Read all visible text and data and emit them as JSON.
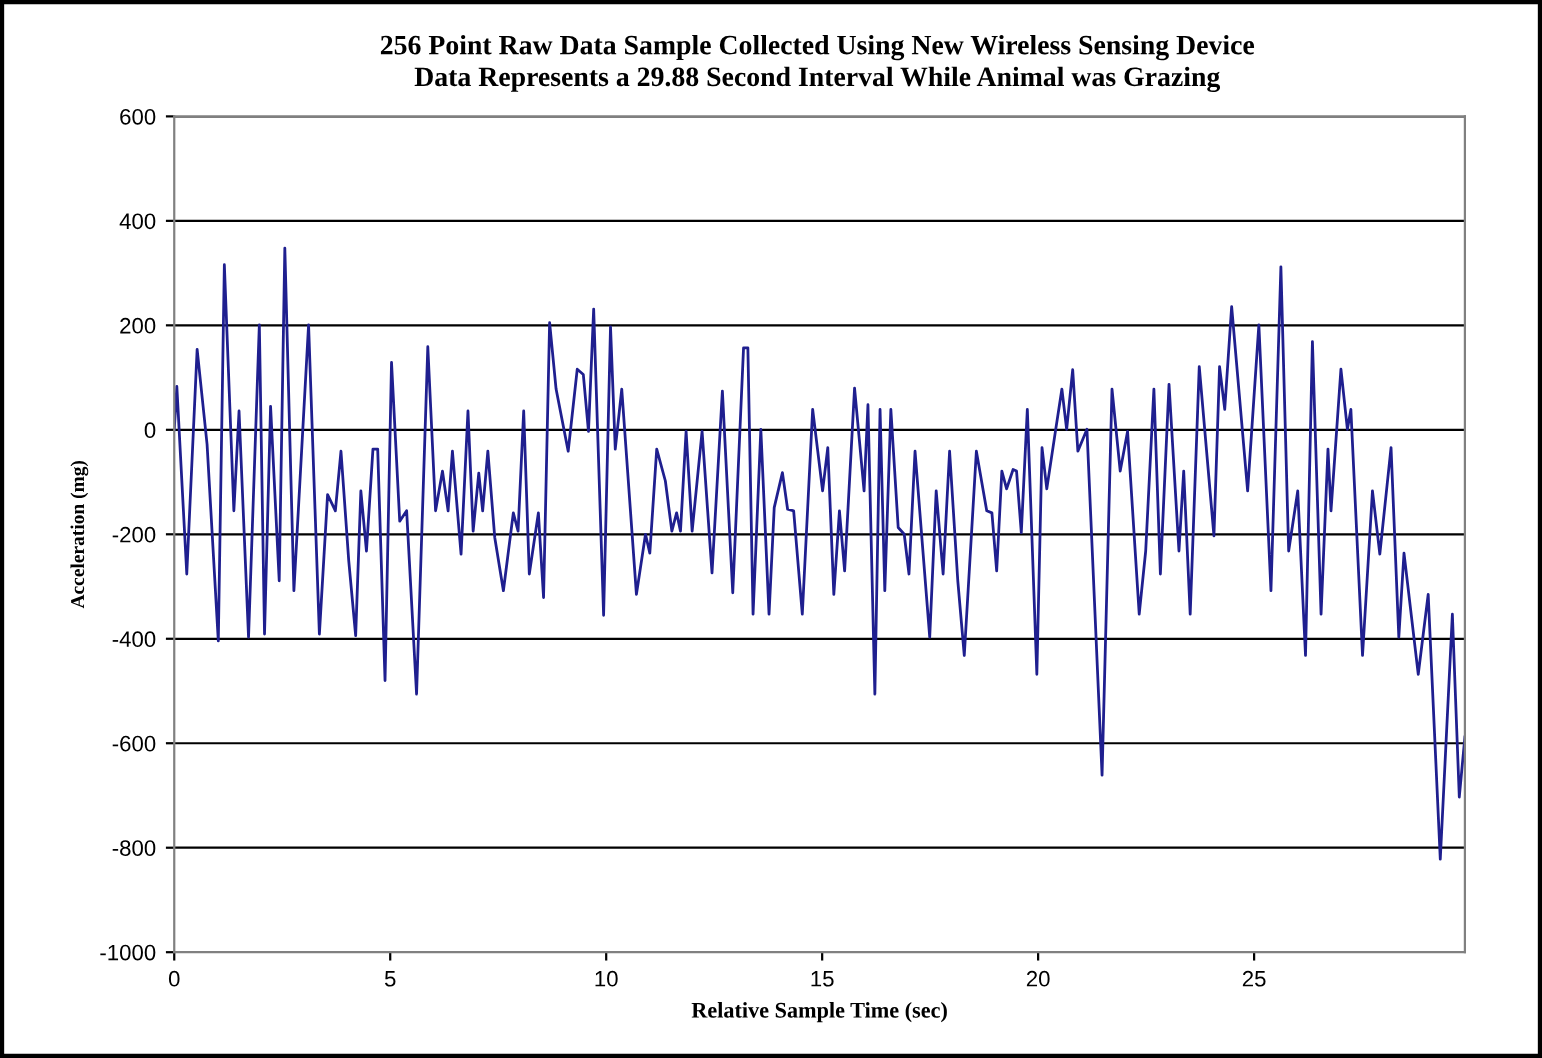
{
  "chart_data": {
    "type": "line",
    "title": "256 Point Raw Data Sample Collected Using New Wireless Sensing Device",
    "subtitle": "Data Represents a 29.88 Second Interval While Animal was Grazing",
    "xlabel": "Relative Sample Time (sec)",
    "ylabel": "Acceleration (mg)",
    "x": [
      0,
      0.06,
      0.29,
      0.53,
      0.76,
      1.02,
      1.16,
      1.38,
      1.5,
      1.72,
      1.97,
      2.09,
      2.23,
      2.43,
      2.56,
      2.77,
      3.11,
      3.36,
      3.55,
      3.73,
      3.86,
      4.04,
      4.2,
      4.32,
      4.45,
      4.6,
      4.71,
      4.88,
      5.03,
      5.22,
      5.38,
      5.61,
      5.87,
      6.05,
      6.21,
      6.34,
      6.44,
      6.64,
      6.8,
      6.92,
      7.05,
      7.14,
      7.26,
      7.42,
      7.62,
      7.85,
      7.96,
      8.09,
      8.22,
      8.43,
      8.55,
      8.69,
      8.84,
      9.12,
      9.33,
      9.47,
      9.59,
      9.71,
      9.94,
      10.1,
      10.21,
      10.36,
      10.7,
      10.91,
      11.01,
      11.17,
      11.37,
      11.52,
      11.63,
      11.72,
      11.85,
      11.99,
      12.22,
      12.45,
      12.69,
      12.93,
      13.18,
      13.28,
      13.4,
      13.58,
      13.77,
      13.89,
      14.08,
      14.2,
      14.34,
      14.54,
      14.78,
      15.01,
      15.13,
      15.27,
      15.4,
      15.52,
      15.75,
      15.97,
      16.06,
      16.22,
      16.34,
      16.45,
      16.59,
      16.76,
      16.9,
      17.01,
      17.15,
      17.49,
      17.64,
      17.8,
      17.95,
      18.14,
      18.29,
      18.57,
      18.81,
      18.93,
      19.04,
      19.16,
      19.27,
      19.42,
      19.5,
      19.61,
      19.75,
      19.97,
      20.09,
      20.2,
      20.4,
      20.55,
      20.66,
      20.8,
      20.92,
      21.13,
      21.48,
      21.71,
      21.9,
      22.07,
      22.34,
      22.49,
      22.68,
      22.83,
      23.03,
      23.26,
      23.37,
      23.52,
      23.73,
      24.07,
      24.2,
      24.32,
      24.48,
      24.85,
      25.11,
      25.39,
      25.62,
      25.8,
      26.01,
      26.19,
      26.35,
      26.55,
      26.71,
      26.78,
      27.01,
      27.16,
      27.24,
      27.51,
      27.74,
      27.91,
      28.17,
      28.35,
      28.47,
      28.8,
      29.03,
      29.31,
      29.59,
      29.75,
      29.88
    ],
    "series": [
      {
        "color": "#1f1f8f",
        "values": [
          0,
          83,
          -276,
          154,
          -28,
          -404,
          316,
          -155,
          36,
          -397,
          201,
          -391,
          45,
          -289,
          348,
          -308,
          201,
          -391,
          -124,
          -155,
          -41,
          -251,
          -394,
          -117,
          -232,
          -37,
          -37,
          -480,
          129,
          -175,
          -155,
          -506,
          159,
          -155,
          -79,
          -155,
          -41,
          -238,
          36,
          -194,
          -83,
          -155,
          -41,
          -206,
          -308,
          -159,
          -194,
          36,
          -276,
          -159,
          -321,
          205,
          78,
          -41,
          116,
          106,
          -3,
          231,
          -355,
          197,
          -37,
          78,
          -315,
          -200,
          -236,
          -37,
          -98,
          -194,
          -159,
          -194,
          -3,
          -194,
          -3,
          -274,
          74,
          -312,
          157,
          157,
          -353,
          1,
          -353,
          -149,
          -82,
          -152,
          -155,
          -353,
          39,
          -117,
          -34,
          -315,
          -155,
          -270,
          80,
          -117,
          48,
          -506,
          39,
          -308,
          39,
          -187,
          -200,
          -276,
          -41,
          -397,
          -117,
          -276,
          -41,
          -289,
          -432,
          -41,
          -155,
          -159,
          -270,
          -79,
          -113,
          -76,
          -79,
          -197,
          39,
          -468,
          -34,
          -113,
          -3,
          78,
          1,
          115,
          -41,
          1,
          -661,
          78,
          -79,
          -3,
          -353,
          -232,
          78,
          -276,
          87,
          -232,
          -79,
          -353,
          121,
          -203,
          121,
          39,
          236,
          -117,
          201,
          -308,
          312,
          -232,
          -117,
          -432,
          169,
          -353,
          -37,
          -155,
          116,
          1,
          39,
          -432,
          -117,
          -238,
          -34,
          -397,
          -236,
          -468,
          -315,
          -822,
          -353,
          -703,
          -588
        ]
      }
    ],
    "xlim": [
      0,
      29.88
    ],
    "xticks": [
      0,
      5,
      10,
      15,
      20,
      25
    ],
    "ylim": [
      -1000,
      600
    ],
    "yticks": [
      -1000,
      -800,
      -600,
      -400,
      -200,
      0,
      200,
      400,
      600
    ],
    "grid": "y",
    "marker": "none",
    "line_style": "solid",
    "legend": false
  }
}
